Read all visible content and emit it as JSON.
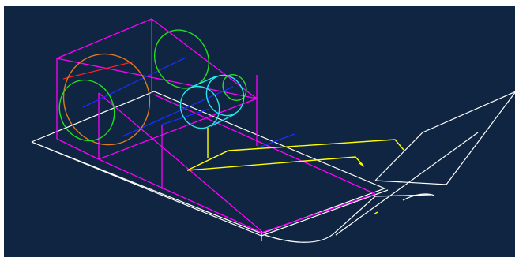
{
  "viewport": {
    "background": "#0f2541",
    "colors": {
      "housing": "#ff00ff",
      "base_plate": "#ffffff",
      "axis": "#1a2cff",
      "accent": "#ff2020",
      "large_ring": "#e07a20",
      "ring": "#22dd22",
      "spool": "#26e6ee",
      "wire": "#ffff00"
    }
  }
}
